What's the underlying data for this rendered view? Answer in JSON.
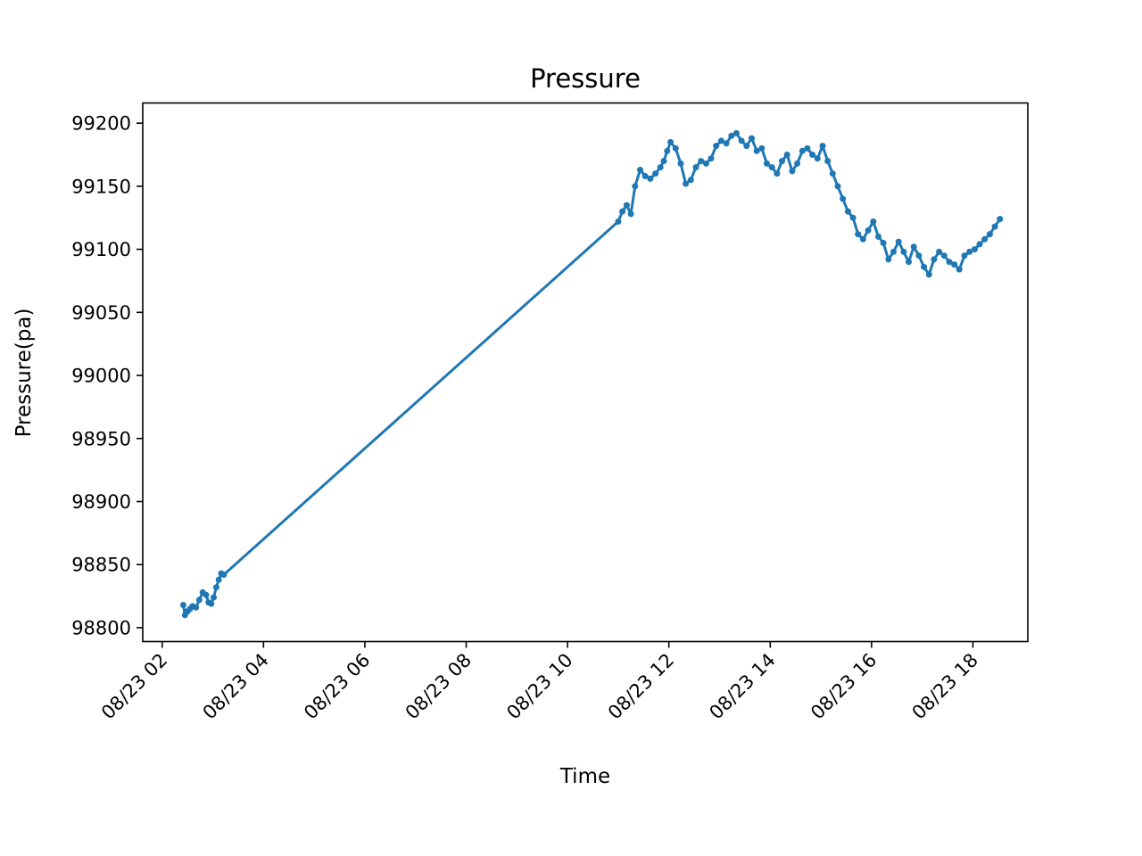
{
  "chart_data": {
    "type": "line",
    "title": "Pressure",
    "xlabel": "Time",
    "ylabel": "Pressure(pa)",
    "x_is_date": true,
    "xlim": [
      "2023-08-23T01:37",
      "2023-08-23T19:05"
    ],
    "ylim": [
      98789,
      99216
    ],
    "x_ticks": [
      "2023-08-23T02:00",
      "2023-08-23T04:00",
      "2023-08-23T06:00",
      "2023-08-23T08:00",
      "2023-08-23T10:00",
      "2023-08-23T12:00",
      "2023-08-23T14:00",
      "2023-08-23T16:00",
      "2023-08-23T18:00"
    ],
    "x_tick_labels": [
      "08/23 02",
      "08/23 04",
      "08/23 06",
      "08/23 08",
      "08/23 10",
      "08/23 12",
      "08/23 14",
      "08/23 16",
      "08/23 18"
    ],
    "y_ticks": [
      98800,
      98850,
      98900,
      98950,
      99000,
      99050,
      99100,
      99150,
      99200
    ],
    "y_tick_labels": [
      "98800",
      "98850",
      "98900",
      "98950",
      "99000",
      "99050",
      "99100",
      "99150",
      "99200"
    ],
    "grid": false,
    "legend": false,
    "series": [
      {
        "color": "#1f77b4",
        "marker": "circle",
        "x": [
          "2023-08-23T02:25",
          "2023-08-23T02:27",
          "2023-08-23T02:30",
          "2023-08-23T02:33",
          "2023-08-23T02:36",
          "2023-08-23T02:40",
          "2023-08-23T02:44",
          "2023-08-23T02:48",
          "2023-08-23T02:52",
          "2023-08-23T02:55",
          "2023-08-23T02:58",
          "2023-08-23T03:01",
          "2023-08-23T03:04",
          "2023-08-23T03:07",
          "2023-08-23T03:10",
          "2023-08-23T03:13",
          "2023-08-23T11:00",
          "2023-08-23T11:05",
          "2023-08-23T11:10",
          "2023-08-23T11:15",
          "2023-08-23T11:20",
          "2023-08-23T11:26",
          "2023-08-23T11:32",
          "2023-08-23T11:38",
          "2023-08-23T11:44",
          "2023-08-23T11:50",
          "2023-08-23T11:54",
          "2023-08-23T11:58",
          "2023-08-23T12:02",
          "2023-08-23T12:08",
          "2023-08-23T12:14",
          "2023-08-23T12:20",
          "2023-08-23T12:26",
          "2023-08-23T12:32",
          "2023-08-23T12:38",
          "2023-08-23T12:44",
          "2023-08-23T12:50",
          "2023-08-23T12:56",
          "2023-08-23T13:02",
          "2023-08-23T13:08",
          "2023-08-23T13:14",
          "2023-08-23T13:20",
          "2023-08-23T13:26",
          "2023-08-23T13:32",
          "2023-08-23T13:38",
          "2023-08-23T13:44",
          "2023-08-23T13:50",
          "2023-08-23T13:56",
          "2023-08-23T14:02",
          "2023-08-23T14:08",
          "2023-08-23T14:14",
          "2023-08-23T14:20",
          "2023-08-23T14:26",
          "2023-08-23T14:32",
          "2023-08-23T14:38",
          "2023-08-23T14:44",
          "2023-08-23T14:50",
          "2023-08-23T14:56",
          "2023-08-23T15:02",
          "2023-08-23T15:08",
          "2023-08-23T15:14",
          "2023-08-23T15:20",
          "2023-08-23T15:26",
          "2023-08-23T15:32",
          "2023-08-23T15:38",
          "2023-08-23T15:44",
          "2023-08-23T15:50",
          "2023-08-23T15:56",
          "2023-08-23T16:02",
          "2023-08-23T16:08",
          "2023-08-23T16:14",
          "2023-08-23T16:20",
          "2023-08-23T16:26",
          "2023-08-23T16:32",
          "2023-08-23T16:38",
          "2023-08-23T16:44",
          "2023-08-23T16:50",
          "2023-08-23T16:56",
          "2023-08-23T17:02",
          "2023-08-23T17:08",
          "2023-08-23T17:14",
          "2023-08-23T17:20",
          "2023-08-23T17:26",
          "2023-08-23T17:32",
          "2023-08-23T17:38",
          "2023-08-23T17:44",
          "2023-08-23T17:50",
          "2023-08-23T17:56",
          "2023-08-23T18:02",
          "2023-08-23T18:08",
          "2023-08-23T18:14",
          "2023-08-23T18:20",
          "2023-08-23T18:26",
          "2023-08-23T18:32"
        ],
        "y": [
          98818,
          98810,
          98813,
          98815,
          98817,
          98816,
          98822,
          98828,
          98826,
          98820,
          98819,
          98824,
          98832,
          98838,
          98843,
          98842,
          99122,
          99130,
          99135,
          99128,
          99150,
          99163,
          99158,
          99156,
          99160,
          99165,
          99170,
          99178,
          99185,
          99180,
          99168,
          99152,
          99155,
          99165,
          99170,
          99168,
          99172,
          99182,
          99186,
          99184,
          99190,
          99192,
          99186,
          99182,
          99188,
          99178,
          99180,
          99168,
          99165,
          99160,
          99170,
          99175,
          99162,
          99168,
          99178,
          99180,
          99175,
          99172,
          99182,
          99170,
          99160,
          99150,
          99140,
          99130,
          99125,
          99112,
          99108,
          99115,
          99122,
          99110,
          99105,
          99092,
          99098,
          99106,
          99098,
          99090,
          99102,
          99095,
          99086,
          99080,
          99092,
          99098,
          99095,
          99090,
          99088,
          99084,
          99095,
          99098,
          99100,
          99104,
          99108,
          99112,
          99118,
          99124
        ]
      }
    ]
  }
}
